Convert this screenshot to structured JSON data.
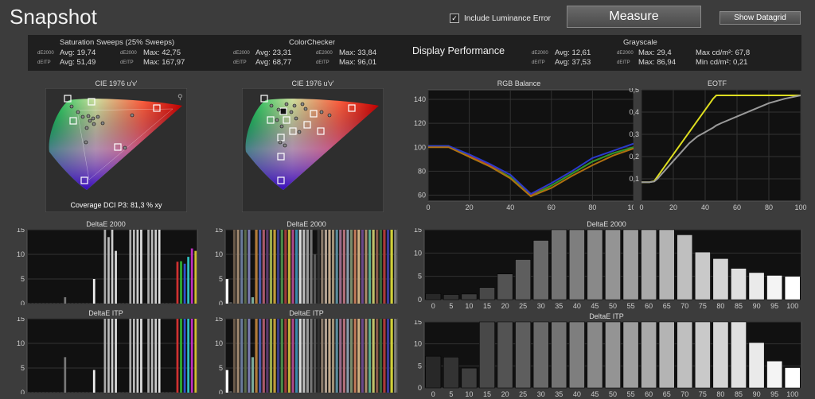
{
  "header": {
    "title": "Snapshot",
    "include_luminance_label": "Include Luminance Error",
    "include_luminance_checked": true,
    "measure_label": "Measure",
    "datagrid_label": "Show Datagrid"
  },
  "stats": {
    "saturation": {
      "title": "Saturation Sweeps (25% Sweeps)",
      "de2000_label": "dE2000",
      "ditp_label": "dEITP",
      "avg_de": "Avg: 19,74",
      "max_de": "Max: 42,75",
      "avg_itp": "Avg: 51,49",
      "max_itp": "Max: 167,97"
    },
    "colorchecker": {
      "title": "ColorChecker",
      "de2000_label": "dE2000",
      "ditp_label": "dEITP",
      "avg_de": "Avg: 23,31",
      "max_de": "Max: 33,84",
      "avg_itp": "Avg: 68,77",
      "max_itp": "Max: 96,01"
    },
    "display_performance": "Display Performance",
    "grayscale": {
      "title": "Grayscale",
      "de2000_label": "dE2000",
      "ditp_label": "dEITP",
      "avg_de": "Avg: 12,61",
      "max_de": "Max: 29,4",
      "avg_itp": "Avg: 37,53",
      "max_itp": "Max: 86,94",
      "max_cd": "Max cd/m²:  67,8",
      "min_cd": "Min cd/m²:  0,21"
    }
  },
  "cie1": {
    "title": "CIE 1976 u'v'",
    "coverage": "Coverage DCI P3:  81,3 % xy"
  },
  "cie2": {
    "title": "CIE 1976 u'v'"
  },
  "rgb": {
    "title": "RGB Balance"
  },
  "eotf": {
    "title": "EOTF"
  },
  "small_charts": {
    "de_title_1": "DeltaE 2000",
    "de_title_2": "DeltaE 2000",
    "itp_title_1": "DeltaE ITP",
    "itp_title_2": "DeltaE ITP"
  },
  "gray_charts": {
    "de_title": "DeltaE 2000",
    "itp_title": "DeltaE ITP"
  },
  "chart_data": [
    {
      "type": "line",
      "title": "RGB Balance",
      "x": [
        0,
        10,
        20,
        30,
        40,
        50,
        60,
        70,
        80,
        90,
        100
      ],
      "xlim": [
        0,
        100
      ],
      "ylim": [
        55,
        148
      ],
      "yticks": [
        60,
        80,
        100,
        120,
        140
      ],
      "xticks": [
        0,
        20,
        40,
        60,
        80,
        100
      ],
      "series": [
        {
          "color": "#cc2a2a",
          "values": [
            101,
            101,
            93,
            85,
            75,
            60,
            68,
            78,
            88,
            95,
            100
          ]
        },
        {
          "color": "#2a9a2a",
          "values": [
            101,
            101,
            92,
            84,
            75,
            59,
            68,
            78,
            88,
            95,
            100
          ]
        },
        {
          "color": "#2a3acc",
          "values": [
            101,
            101,
            94,
            86,
            77,
            61,
            70,
            80,
            91,
            97,
            103
          ]
        },
        {
          "color": "#b07010",
          "values": [
            100,
            100,
            92,
            84,
            74,
            59,
            66,
            76,
            85,
            93,
            99
          ]
        }
      ]
    },
    {
      "type": "line",
      "title": "EOTF",
      "x": [
        0,
        5,
        8,
        10,
        15,
        20,
        25,
        30,
        35,
        40,
        45,
        47,
        50,
        60,
        70,
        80,
        90,
        100
      ],
      "xlim": [
        0,
        100
      ],
      "ylim": [
        0,
        0.5
      ],
      "yticks": [
        0.1,
        0.2,
        0.3,
        0.4,
        0.5
      ],
      "xticks": [
        0,
        20,
        40,
        60,
        80,
        100
      ],
      "series": [
        {
          "color": "#dede20",
          "values": [
            0.085,
            0.085,
            0.09,
            0.11,
            0.16,
            0.21,
            0.26,
            0.31,
            0.36,
            0.41,
            0.46,
            0.475,
            0.475,
            0.475,
            0.475,
            0.475,
            0.475,
            0.475
          ]
        },
        {
          "color": "#9a9a9a",
          "values": [
            0.085,
            0.085,
            0.088,
            0.1,
            0.14,
            0.18,
            0.22,
            0.26,
            0.29,
            0.31,
            0.33,
            0.34,
            0.35,
            0.38,
            0.41,
            0.44,
            0.46,
            0.475
          ]
        }
      ]
    },
    {
      "type": "bar",
      "title": "DeltaE 2000",
      "categories": [
        "0",
        "5",
        "10",
        "15",
        "20",
        "25",
        "30",
        "35",
        "40",
        "45",
        "50",
        "55",
        "60",
        "65",
        "70",
        "75",
        "80",
        "85",
        "90",
        "95",
        "100"
      ],
      "ylim": [
        0,
        15
      ],
      "yticks": [
        0,
        5,
        10,
        15
      ],
      "values": [
        1.3,
        1.1,
        1.2,
        2.6,
        5.5,
        8.6,
        12.7,
        15,
        15,
        15,
        15,
        15,
        15,
        15,
        13.9,
        10.2,
        8.8,
        6.7,
        5.8,
        5.2,
        5.0
      ]
    },
    {
      "type": "bar",
      "title": "DeltaE ITP",
      "categories": [
        "0",
        "5",
        "10",
        "15",
        "20",
        "25",
        "30",
        "35",
        "40",
        "45",
        "50",
        "55",
        "60",
        "65",
        "70",
        "75",
        "80",
        "85",
        "90",
        "95",
        "100"
      ],
      "ylim": [
        0,
        15
      ],
      "yticks": [
        0,
        5,
        10,
        15
      ],
      "values": [
        7.2,
        7.0,
        4.5,
        15,
        15,
        15,
        15,
        15,
        15,
        15,
        15,
        15,
        15,
        15,
        15,
        15,
        15,
        15,
        10.3,
        6.1,
        4.6
      ]
    },
    {
      "type": "bar",
      "title": "DeltaE 2000",
      "ylim": [
        0,
        15
      ],
      "yticks": [
        0,
        5,
        10,
        15
      ],
      "values": [
        0.1,
        0.1,
        0.1,
        0.1,
        0.1,
        0.1,
        0.1,
        0.1,
        0.1,
        0.1,
        1.3,
        0.1,
        0.1,
        0.1,
        0.1,
        0.1,
        0.1,
        0.1,
        5,
        0.1,
        0.1,
        15,
        13.5,
        15,
        10.7,
        0.1,
        0.1,
        0.1,
        15,
        15,
        15,
        15,
        0.1,
        15,
        15,
        15,
        15,
        0.1,
        0.1,
        0.1,
        0.1,
        8.5,
        8.6,
        8.1,
        9.5,
        11.2,
        10.7
      ],
      "colors": [
        "#444",
        "#444",
        "#444",
        "#444",
        "#444",
        "#444",
        "#444",
        "#444",
        "#444",
        "#444",
        "#777",
        "#444",
        "#444",
        "#444",
        "#444",
        "#444",
        "#444",
        "#444",
        "#eee",
        "#444",
        "#444",
        "#aaa",
        "#bbb",
        "#ccc",
        "#ddd",
        "#444",
        "#444",
        "#444",
        "#aaa",
        "#bbb",
        "#ccc",
        "#ddd",
        "#444",
        "#aaa",
        "#bbb",
        "#ccc",
        "#ddd",
        "#444",
        "#444",
        "#444",
        "#444",
        "#d03030",
        "#30b030",
        "#3050d0",
        "#30c0c0",
        "#c030c0",
        "#d0c030"
      ]
    },
    {
      "type": "bar",
      "title": "DeltaE 2000",
      "ylim": [
        0,
        15
      ],
      "yticks": [
        0,
        5,
        10,
        15
      ],
      "values": [
        5,
        0.3,
        15,
        15,
        15,
        15,
        15,
        1.3,
        15,
        15,
        15,
        15,
        15,
        15,
        15,
        15,
        15,
        15,
        15,
        15,
        15,
        15,
        15,
        15,
        10,
        15,
        15,
        15,
        15,
        15,
        15,
        15,
        15,
        15,
        15,
        15,
        15,
        15,
        15,
        15,
        15,
        15,
        15,
        15,
        15,
        15,
        15
      ],
      "colors": [
        "#fff",
        "#555",
        "#6a5a4a",
        "#a08870",
        "#6a7a9a",
        "#5a6a4a",
        "#7a7aaa",
        "#7aaa9a",
        "#b07a3a",
        "#4a5aaa",
        "#aa5a6a",
        "#5a3a6a",
        "#9aaa4a",
        "#c09a3a",
        "#3a3a8a",
        "#4a8a4a",
        "#9a3a3a",
        "#c0b03a",
        "#aa4a8a",
        "#3a8aaa",
        "#ddd",
        "#bbb",
        "#999",
        "#777",
        "#555",
        "#333",
        "#8a7a6a",
        "#b0a090",
        "#c0a88a",
        "#a09078",
        "#5a8a9a",
        "#9a6a8a",
        "#b0707a",
        "#8a9aaa",
        "#7a8a6a",
        "#c07a5a",
        "#d0b080",
        "#6a4a8a",
        "#aa8a6a",
        "#5aaa8a",
        "#c0c06a",
        "#8a5a4a",
        "#3a6a3a",
        "#aa3a3a",
        "#3a3a9a",
        "#d0d03a",
        "#7a7a7a"
      ]
    },
    {
      "type": "bar",
      "title": "DeltaE ITP",
      "ylim": [
        0,
        15
      ],
      "yticks": [
        0,
        5,
        10,
        15
      ],
      "values": [
        0.1,
        0.1,
        0.1,
        0.1,
        0.1,
        0.1,
        0.1,
        0.1,
        0.1,
        0.1,
        7.2,
        0.1,
        0.1,
        0.1,
        0.1,
        0.1,
        0.1,
        0.1,
        4.6,
        0.1,
        0.1,
        15,
        15,
        15,
        15,
        0.1,
        0.1,
        0.1,
        15,
        15,
        15,
        15,
        0.1,
        15,
        15,
        15,
        15,
        0.1,
        0.1,
        0.1,
        0.1,
        15,
        15,
        15,
        15,
        15,
        15
      ],
      "colors": [
        "#444",
        "#444",
        "#444",
        "#444",
        "#444",
        "#444",
        "#444",
        "#444",
        "#444",
        "#444",
        "#777",
        "#444",
        "#444",
        "#444",
        "#444",
        "#444",
        "#444",
        "#444",
        "#eee",
        "#444",
        "#444",
        "#aaa",
        "#bbb",
        "#ccc",
        "#ddd",
        "#444",
        "#444",
        "#444",
        "#aaa",
        "#bbb",
        "#ccc",
        "#ddd",
        "#444",
        "#aaa",
        "#bbb",
        "#ccc",
        "#ddd",
        "#444",
        "#444",
        "#444",
        "#444",
        "#d03030",
        "#30b030",
        "#3050d0",
        "#30c0c0",
        "#c030c0",
        "#d0c030"
      ]
    },
    {
      "type": "bar",
      "title": "DeltaE ITP",
      "ylim": [
        0,
        15
      ],
      "yticks": [
        0,
        5,
        10,
        15
      ],
      "values": [
        4.6,
        0.3,
        15,
        15,
        15,
        15,
        15,
        7.2,
        15,
        15,
        15,
        15,
        15,
        15,
        15,
        15,
        15,
        15,
        15,
        15,
        15,
        15,
        15,
        15,
        15,
        15,
        15,
        15,
        15,
        15,
        15,
        15,
        15,
        15,
        15,
        15,
        15,
        15,
        15,
        15,
        15,
        15,
        15,
        15,
        15,
        15,
        15
      ],
      "colors": [
        "#fff",
        "#555",
        "#6a5a4a",
        "#a08870",
        "#6a7a9a",
        "#5a6a4a",
        "#7a7aaa",
        "#7aaa9a",
        "#b07a3a",
        "#4a5aaa",
        "#aa5a6a",
        "#5a3a6a",
        "#9aaa4a",
        "#c09a3a",
        "#3a3a8a",
        "#4a8a4a",
        "#9a3a3a",
        "#c0b03a",
        "#aa4a8a",
        "#3a8aaa",
        "#ddd",
        "#bbb",
        "#999",
        "#777",
        "#555",
        "#333",
        "#8a7a6a",
        "#b0a090",
        "#c0a88a",
        "#a09078",
        "#5a8a9a",
        "#9a6a8a",
        "#b0707a",
        "#8a9aaa",
        "#7a8a6a",
        "#c07a5a",
        "#d0b080",
        "#6a4a8a",
        "#aa8a6a",
        "#5aaa8a",
        "#c0c06a",
        "#8a5a4a",
        "#3a6a3a",
        "#aa3a3a",
        "#3a3a9a",
        "#d0d03a",
        "#7a7a7a"
      ]
    }
  ]
}
